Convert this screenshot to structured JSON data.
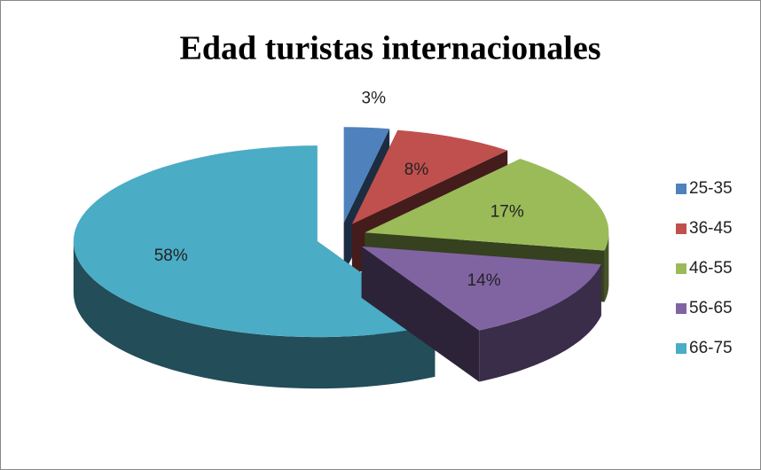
{
  "chart_data": {
    "type": "pie3d",
    "title": "Edad turistas internacionales",
    "categories": [
      "25-35",
      "36-45",
      "46-55",
      "56-65",
      "66-75"
    ],
    "values": [
      3,
      8,
      17,
      14,
      58
    ],
    "value_labels": [
      "3%",
      "8%",
      "17%",
      "14%",
      "58%"
    ],
    "colors": [
      "#4f81bd",
      "#c0504d",
      "#9bbb59",
      "#8064a2",
      "#4bacc6"
    ],
    "legend": "right"
  }
}
